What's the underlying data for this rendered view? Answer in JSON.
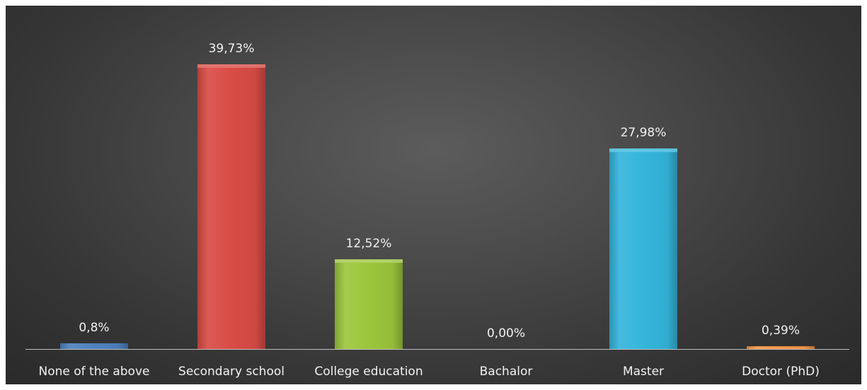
{
  "chart_data": {
    "type": "bar",
    "title": "",
    "xlabel": "",
    "ylabel": "",
    "ylim": [
      0,
      42
    ],
    "grid": false,
    "legend": "none",
    "categories": [
      "None of the above",
      "Secondary school",
      "College education",
      "Bachalor",
      "Master",
      "Doctor (PhD)"
    ],
    "values": [
      0.8,
      39.73,
      12.52,
      0.0,
      27.98,
      0.39
    ],
    "data_labels": [
      "0,8%",
      "39,73%",
      "12,52%",
      "0,00%",
      "27,98%",
      "0,39%"
    ],
    "colors": [
      "#4f81bd",
      "#d94c45",
      "#9cc63c",
      "#8064a2",
      "#35b5dc",
      "#f79646"
    ]
  }
}
